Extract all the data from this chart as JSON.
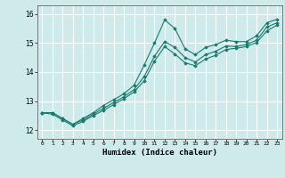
{
  "title": "",
  "xlabel": "Humidex (Indice chaleur)",
  "ylabel": "",
  "bg_color": "#ceeaea",
  "grid_color": "#ffffff",
  "line_color": "#1a7a6e",
  "xlim": [
    -0.5,
    23.5
  ],
  "ylim": [
    11.7,
    16.3
  ],
  "yticks": [
    12,
    13,
    14,
    15,
    16
  ],
  "xticks": [
    0,
    1,
    2,
    3,
    4,
    5,
    6,
    7,
    8,
    9,
    10,
    11,
    12,
    13,
    14,
    15,
    16,
    17,
    18,
    19,
    20,
    21,
    22,
    23
  ],
  "lines": [
    [
      12.6,
      12.6,
      12.4,
      12.2,
      12.4,
      12.6,
      12.85,
      13.05,
      13.25,
      13.55,
      14.25,
      15.0,
      15.8,
      15.5,
      14.8,
      14.6,
      14.85,
      14.95,
      15.1,
      15.05,
      15.05,
      15.25,
      15.7,
      15.82
    ],
    [
      12.6,
      12.6,
      12.4,
      12.2,
      12.35,
      12.55,
      12.75,
      12.95,
      13.15,
      13.4,
      13.85,
      14.55,
      15.05,
      14.85,
      14.5,
      14.35,
      14.6,
      14.72,
      14.9,
      14.88,
      14.95,
      15.1,
      15.55,
      15.7
    ],
    [
      12.6,
      12.55,
      12.35,
      12.15,
      12.3,
      12.5,
      12.68,
      12.88,
      13.08,
      13.32,
      13.7,
      14.38,
      14.88,
      14.62,
      14.32,
      14.22,
      14.45,
      14.58,
      14.78,
      14.82,
      14.88,
      15.02,
      15.42,
      15.62
    ]
  ]
}
